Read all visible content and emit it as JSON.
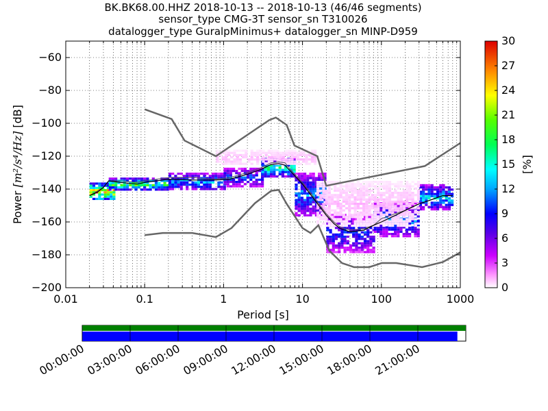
{
  "chart_data": {
    "type": "heatmap",
    "title_lines": [
      "BK.BK68.00.HHZ   2018-10-13 -- 2018-10-13  (46/46 segments)",
      "sensor_type CMG-3T sensor_sn T310026",
      "datalogger_type GuralpMinimus+ datalogger_sn MINP-D959"
    ],
    "xlabel": "Period [s]",
    "ylabel_prefix": "Power ",
    "ylabel_math": "[m²/s⁴/Hz]",
    "ylabel_suffix": " [dB]",
    "xscale": "log",
    "xlim": [
      0.01,
      1000
    ],
    "ylim": [
      -200,
      -50
    ],
    "x_ticks": [
      0.01,
      0.1,
      1,
      10,
      100,
      1000
    ],
    "x_tick_labels": [
      "0.01",
      "0.1",
      "1",
      "10",
      "100",
      "1000"
    ],
    "y_ticks": [
      -200,
      -180,
      -160,
      -140,
      -120,
      -100,
      -80,
      -60
    ],
    "y_tick_labels": [
      "−200",
      "−180",
      "−160",
      "−140",
      "−120",
      "−100",
      "−80",
      "−60"
    ],
    "grid": true,
    "colorbar": {
      "label": "[%]",
      "range": [
        0,
        30
      ],
      "ticks": [
        0,
        3,
        6,
        9,
        12,
        15,
        18,
        21,
        24,
        27,
        30
      ],
      "tick_labels": [
        "0",
        "3",
        "6",
        "9",
        "12",
        "15",
        "18",
        "21",
        "24",
        "27",
        "30"
      ]
    },
    "noise_model_high": [
      [
        0.1,
        -91.5
      ],
      [
        0.22,
        -97.4
      ],
      [
        0.32,
        -110.5
      ],
      [
        0.8,
        -120
      ],
      [
        3.8,
        -98
      ],
      [
        4.6,
        -96.5
      ],
      [
        6.3,
        -101
      ],
      [
        7.9,
        -113.5
      ],
      [
        15.4,
        -120
      ],
      [
        20,
        -138
      ],
      [
        354.8,
        -126
      ],
      [
        1000,
        -112
      ]
    ],
    "noise_model_low": [
      [
        0.1,
        -168
      ],
      [
        0.17,
        -166.7
      ],
      [
        0.4,
        -166.7
      ],
      [
        0.8,
        -169.2
      ],
      [
        1.26,
        -163.7
      ],
      [
        2.5,
        -148.6
      ],
      [
        4.0,
        -141.1
      ],
      [
        5.0,
        -140.5
      ],
      [
        6.3,
        -149
      ],
      [
        10,
        -163.7
      ],
      [
        12.6,
        -166.7
      ],
      [
        15.9,
        -162
      ],
      [
        21.9,
        -177.5
      ],
      [
        31.6,
        -185
      ],
      [
        45,
        -187.5
      ],
      [
        70,
        -187.5
      ],
      [
        101,
        -185
      ],
      [
        154,
        -185
      ],
      [
        328,
        -187.5
      ],
      [
        600,
        -184.4
      ],
      [
        1000,
        -178.5
      ]
    ],
    "median_curve": [
      [
        0.02,
        -144
      ],
      [
        0.025,
        -142
      ],
      [
        0.03,
        -139
      ],
      [
        0.035,
        -135
      ],
      [
        0.05,
        -136
      ],
      [
        0.08,
        -137
      ],
      [
        0.1,
        -136
      ],
      [
        0.2,
        -134
      ],
      [
        0.4,
        -134.5
      ],
      [
        0.8,
        -134.5
      ],
      [
        1.2,
        -134
      ],
      [
        2,
        -131
      ],
      [
        3,
        -128
      ],
      [
        4,
        -125
      ],
      [
        5,
        -124.5
      ],
      [
        6,
        -125.5
      ],
      [
        7,
        -129
      ],
      [
        10,
        -137
      ],
      [
        15,
        -148
      ],
      [
        20,
        -156
      ],
      [
        25,
        -161
      ],
      [
        30,
        -164
      ],
      [
        40,
        -166
      ],
      [
        60,
        -165
      ],
      [
        80,
        -162
      ],
      [
        100,
        -160
      ],
      [
        150,
        -156
      ],
      [
        200,
        -153
      ],
      [
        300,
        -149
      ],
      [
        400,
        -147
      ],
      [
        600,
        -144
      ],
      [
        800,
        -144
      ]
    ],
    "mode_curve": [
      [
        0.02,
        -144
      ],
      [
        0.03,
        -139
      ],
      [
        0.035,
        -135
      ],
      [
        0.05,
        -135
      ],
      [
        0.08,
        -136
      ],
      [
        0.1,
        -135
      ],
      [
        0.2,
        -133
      ],
      [
        0.4,
        -133
      ],
      [
        0.8,
        -134
      ],
      [
        1.2,
        -133
      ],
      [
        2,
        -130
      ],
      [
        3,
        -127
      ],
      [
        4,
        -124
      ],
      [
        5,
        -123.5
      ],
      [
        6,
        -124
      ],
      [
        7,
        -128
      ],
      [
        10,
        -136
      ],
      [
        15,
        -147
      ],
      [
        20,
        -155
      ],
      [
        25,
        -160
      ],
      [
        30,
        -163
      ],
      [
        40,
        -165
      ],
      [
        60,
        -164
      ],
      [
        80,
        -162
      ],
      [
        100,
        -158
      ],
      [
        150,
        -155
      ],
      [
        200,
        -153
      ],
      [
        300,
        -149
      ],
      [
        400,
        -147
      ],
      [
        600,
        -144
      ],
      [
        800,
        -144
      ]
    ],
    "density_bands": [
      {
        "x_from": 0.02,
        "x_to": 0.04,
        "y_from": -146,
        "y_to": -136,
        "pct": 24
      },
      {
        "x_from": 0.035,
        "x_to": 0.2,
        "y_from": -140,
        "y_to": -133,
        "pct": 18
      },
      {
        "x_from": 0.2,
        "x_to": 1.0,
        "y_from": -140,
        "y_to": -130,
        "pct": 12
      },
      {
        "x_from": 1.0,
        "x_to": 3.0,
        "y_from": -138,
        "y_to": -127,
        "pct": 10
      },
      {
        "x_from": 3.0,
        "x_to": 8.0,
        "y_from": -132,
        "y_to": -121,
        "pct": 16
      },
      {
        "x_from": 8.0,
        "x_to": 20.0,
        "y_from": -156,
        "y_to": -130,
        "pct": 11
      },
      {
        "x_from": 20.0,
        "x_to": 80.0,
        "y_from": -178,
        "y_to": -155,
        "pct": 9
      },
      {
        "x_from": 80.0,
        "x_to": 300.0,
        "y_from": -168,
        "y_to": -148,
        "pct": 11
      },
      {
        "x_from": 300.0,
        "x_to": 800.0,
        "y_from": -152,
        "y_to": -137,
        "pct": 13
      },
      {
        "x_from": 0.8,
        "x_to": 15.0,
        "y_from": -125,
        "y_to": -116,
        "pct": 1
      },
      {
        "x_from": 15.0,
        "x_to": 300.0,
        "y_from": -162,
        "y_to": -135,
        "pct": 1
      }
    ]
  },
  "timeline": {
    "tick_labels": [
      "00:00:00",
      "03:00:00",
      "06:00:00",
      "09:00:00",
      "12:00:00",
      "15:00:00",
      "18:00:00",
      "21:00:00"
    ],
    "data_coverage_fraction": 1.0,
    "psd_coverage_fraction": 0.978,
    "data_color": "#008000",
    "psd_color": "#0000ff"
  },
  "colors": {
    "noise_model": "#666666",
    "median": "#000000",
    "background": "#ffffff"
  }
}
